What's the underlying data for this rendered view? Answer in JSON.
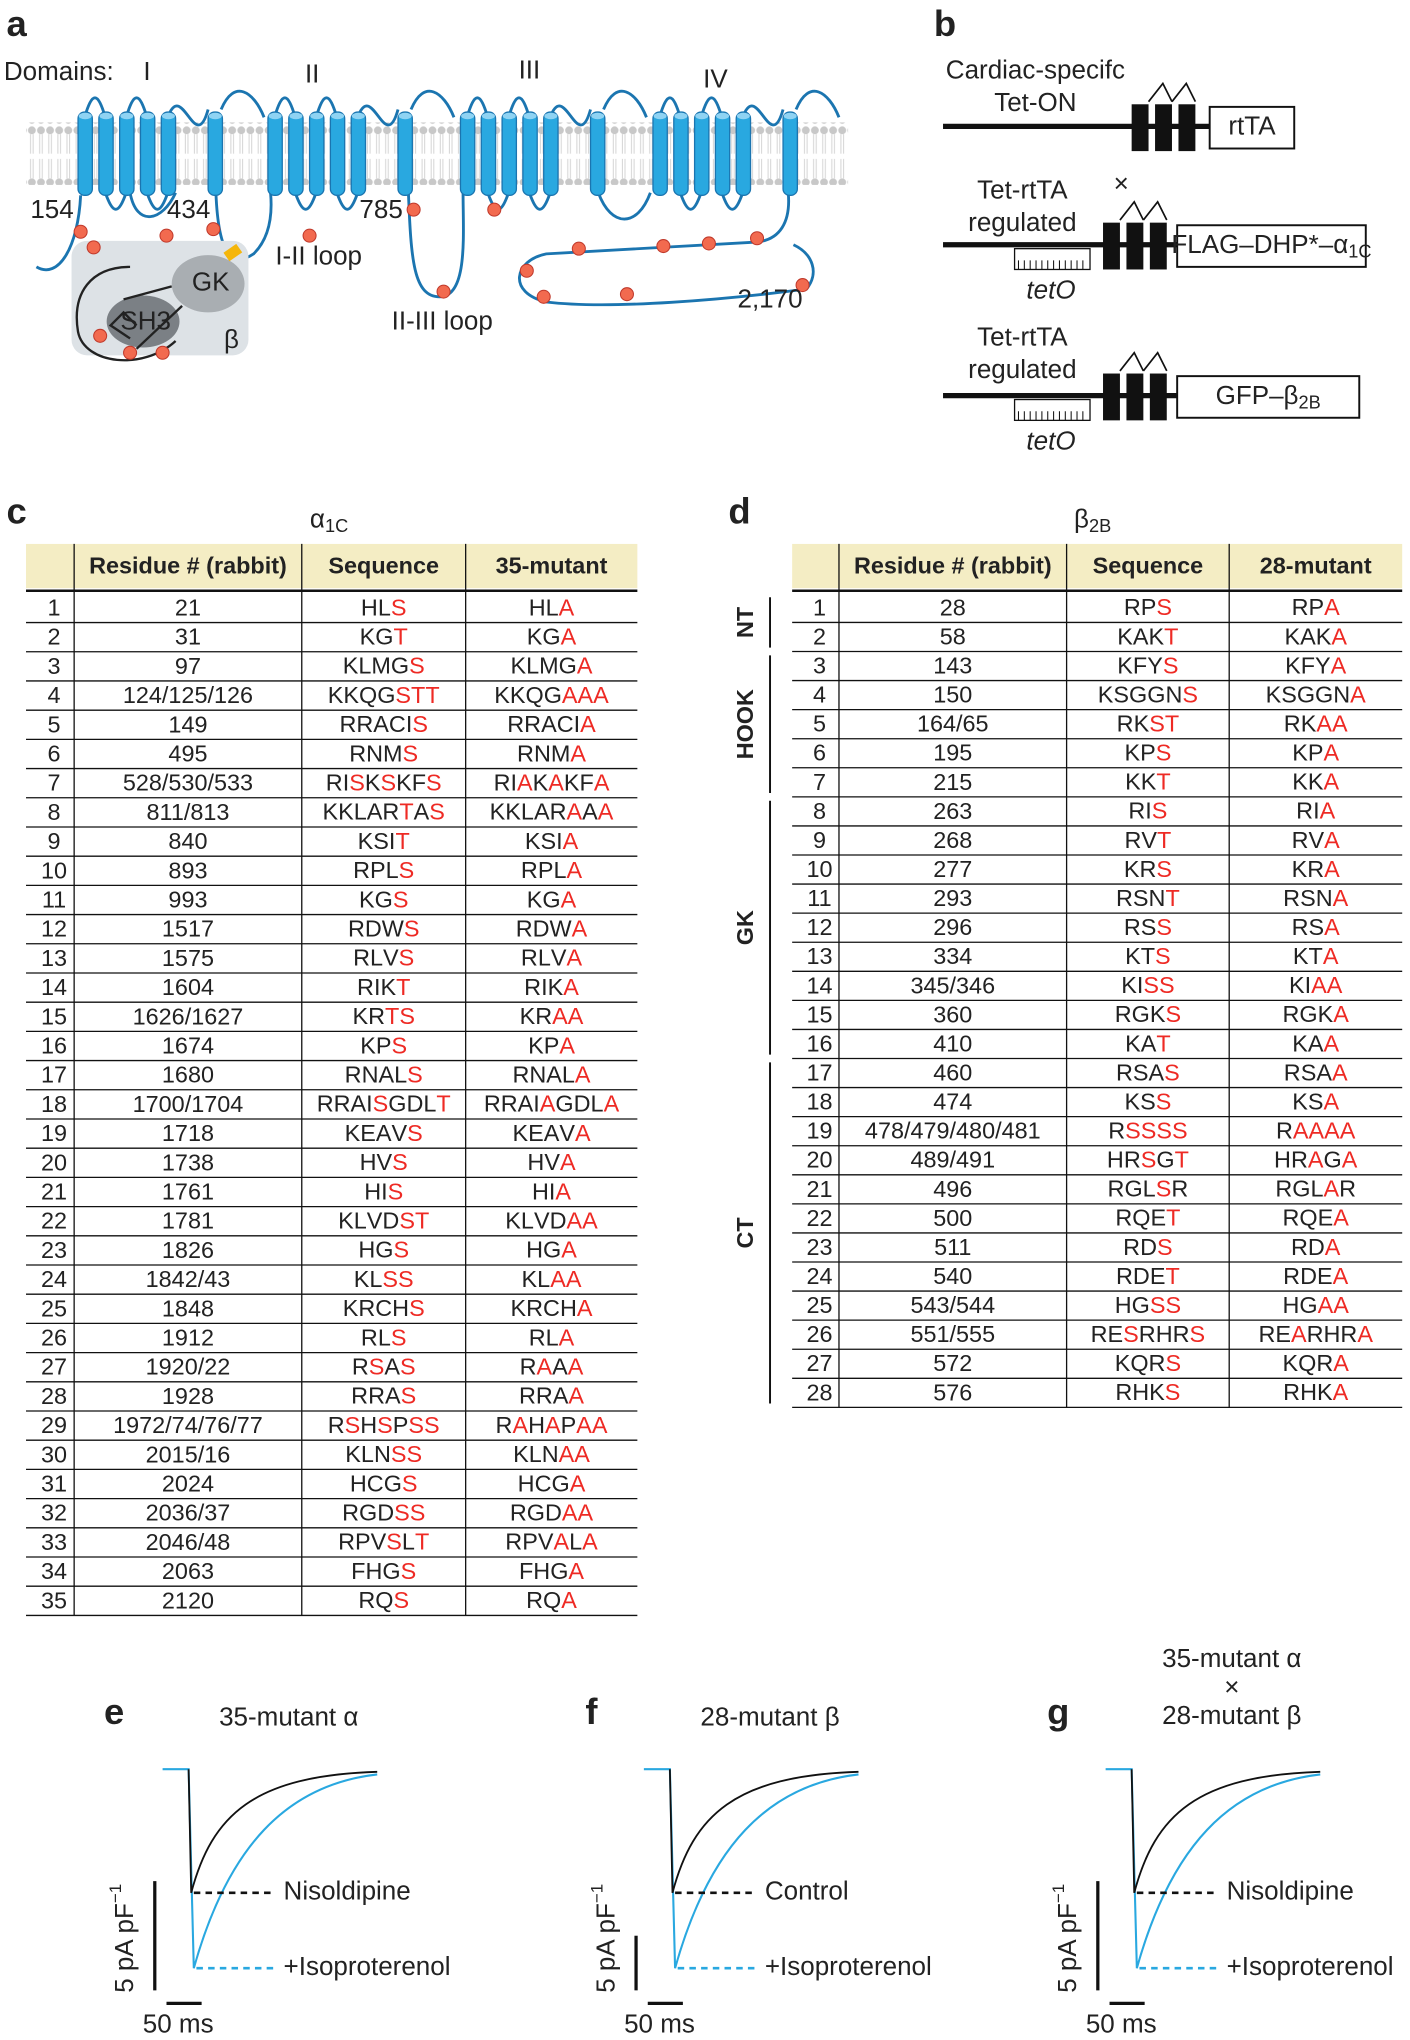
{
  "panel_a": {
    "label": "a",
    "domains_label": "Domains:",
    "domains": [
      "I",
      "II",
      "III",
      "IV"
    ],
    "residues": [
      "154",
      "434",
      "785",
      "2,170"
    ],
    "beta": {
      "gk": "GK",
      "sh3": "SH3",
      "name": "β"
    },
    "loops": [
      "I-II loop",
      "II-III loop"
    ]
  },
  "panel_b": {
    "label": "b",
    "constructs": [
      {
        "promoter": [
          "Cardiac-specifc",
          "Tet-ON"
        ],
        "gene": "rtTA"
      },
      {
        "promoter": [
          "Tet-rtTA",
          "regulated"
        ],
        "mark": "×",
        "operator": "tetO",
        "gene": "FLAG–DHP*–α",
        "gene_sub": "1C"
      },
      {
        "promoter": [
          "Tet-rtTA",
          "regulated"
        ],
        "operator": "tetO",
        "gene": "GFP–β",
        "gene_sub": "2B"
      }
    ]
  },
  "panel_c": {
    "label": "c",
    "title": "α",
    "title_sub": "1C",
    "columns": [
      "Residue # (rabbit)",
      "Sequence",
      "35-mutant"
    ],
    "rows": [
      [
        "1",
        "21",
        "HLS",
        "HLA"
      ],
      [
        "2",
        "31",
        "KGT",
        "KGA"
      ],
      [
        "3",
        "97",
        "KLMGS",
        "KLMGA"
      ],
      [
        "4",
        "124/125/126",
        "KKQGSTT",
        "KKQGAAA"
      ],
      [
        "5",
        "149",
        "RRACIS",
        "RRACIA"
      ],
      [
        "6",
        "495",
        "RNMS",
        "RNMA"
      ],
      [
        "7",
        "528/530/533",
        "RISKSKFS",
        "RIAKAKFA"
      ],
      [
        "8",
        "811/813",
        "KKLARTAS",
        "KKLARAAA"
      ],
      [
        "9",
        "840",
        "KSIT",
        "KSIA"
      ],
      [
        "10",
        "893",
        "RPLS",
        "RPLA"
      ],
      [
        "11",
        "993",
        "KGS",
        "KGA"
      ],
      [
        "12",
        "1517",
        "RDWS",
        "RDWA"
      ],
      [
        "13",
        "1575",
        "RLVS",
        "RLVA"
      ],
      [
        "14",
        "1604",
        "RIKT",
        "RIKA"
      ],
      [
        "15",
        "1626/1627",
        "KRTS",
        "KRAA"
      ],
      [
        "16",
        "1674",
        "KPS",
        "KPA"
      ],
      [
        "17",
        "1680",
        "RNALS",
        "RNALA"
      ],
      [
        "18",
        "1700/1704",
        "RRAISGDLT",
        "RRAIAGDLA"
      ],
      [
        "19",
        "1718",
        "KEAVS",
        "KEAVA"
      ],
      [
        "20",
        "1738",
        "HVS",
        "HVA"
      ],
      [
        "21",
        "1761",
        "HIS",
        "HIA"
      ],
      [
        "22",
        "1781",
        "KLVDST",
        "KLVDAA"
      ],
      [
        "23",
        "1826",
        "HGS",
        "HGA"
      ],
      [
        "24",
        "1842/43",
        "KLSS",
        "KLAA"
      ],
      [
        "25",
        "1848",
        "KRCHS",
        "KRCHA"
      ],
      [
        "26",
        "1912",
        "RLS",
        "RLA"
      ],
      [
        "27",
        "1920/22",
        "RSAS",
        "RAAA"
      ],
      [
        "28",
        "1928",
        "RRAS",
        "RRAA"
      ],
      [
        "29",
        "1972/74/76/77",
        "RSHSPSS",
        "RAHAPAA"
      ],
      [
        "30",
        "2015/16",
        "KLNSS",
        "KLNAA"
      ],
      [
        "31",
        "2024",
        "HCGS",
        "HCGA"
      ],
      [
        "32",
        "2036/37",
        "RGDSS",
        "RGDAA"
      ],
      [
        "33",
        "2046/48",
        "RPVSLT",
        "RPVALA"
      ],
      [
        "34",
        "2063",
        "FHGS",
        "FHGA"
      ],
      [
        "35",
        "2120",
        "RQS",
        "RQA"
      ]
    ]
  },
  "panel_d": {
    "label": "d",
    "title": "β",
    "title_sub": "2B",
    "columns": [
      "Residue # (rabbit)",
      "Sequence",
      "28-mutant"
    ],
    "groups": [
      {
        "name": "NT",
        "rows": [
          [
            "1",
            "28",
            "RPS",
            "RPA"
          ],
          [
            "2",
            "58",
            "KAKT",
            "KAKA"
          ]
        ]
      },
      {
        "name": "HOOK",
        "rows": [
          [
            "3",
            "143",
            "KFYS",
            "KFYA"
          ],
          [
            "4",
            "150",
            "KSGGNS",
            "KSGGNA"
          ],
          [
            "5",
            "164/65",
            "RKST",
            "RKAA"
          ],
          [
            "6",
            "195",
            "KPS",
            "KPA"
          ],
          [
            "7",
            "215",
            "KKT",
            "KKA"
          ]
        ]
      },
      {
        "name": "GK",
        "rows": [
          [
            "8",
            "263",
            "RIS",
            "RIA"
          ],
          [
            "9",
            "268",
            "RVT",
            "RVA"
          ],
          [
            "10",
            "277",
            "KRS",
            "KRA"
          ],
          [
            "11",
            "293",
            "RSNT",
            "RSNA"
          ],
          [
            "12",
            "296",
            "RSS",
            "RSA"
          ],
          [
            "13",
            "334",
            "KTS",
            "KTA"
          ],
          [
            "14",
            "345/346",
            "KISS",
            "KIAA"
          ],
          [
            "15",
            "360",
            "RGKS",
            "RGKA"
          ],
          [
            "16",
            "410",
            "KAT",
            "KAA"
          ]
        ]
      },
      {
        "name": "CT",
        "rows": [
          [
            "17",
            "460",
            "RSAS",
            "RSAA"
          ],
          [
            "18",
            "474",
            "KSS",
            "KSA"
          ],
          [
            "19",
            "478/479/480/481",
            "RSSSS",
            "RAAAA"
          ],
          [
            "20",
            "489/491",
            "HRSGT",
            "HRAGA"
          ],
          [
            "21",
            "496",
            "RGLSR",
            "RGLAR"
          ],
          [
            "22",
            "500",
            "RQET",
            "RQEA"
          ],
          [
            "23",
            "511",
            "RDS",
            "RDA"
          ],
          [
            "24",
            "540",
            "RDET",
            "RDEA"
          ],
          [
            "25",
            "543/544",
            "HGSS",
            "HGAA"
          ],
          [
            "26",
            "551/555",
            "RESRHRS",
            "REARHRA"
          ],
          [
            "27",
            "572",
            "KQRS",
            "KQRA"
          ],
          [
            "28",
            "576",
            "RHKS",
            "RHKA"
          ]
        ]
      }
    ]
  },
  "traces": [
    {
      "label": "e",
      "title": [
        "35-mutant α"
      ],
      "upper": "Nisoldipine",
      "lower": "+Isoproterenol",
      "scale_y": "5 pA pF",
      "scale_y_sup": "−1",
      "scale_x": "50 ms"
    },
    {
      "label": "f",
      "title": [
        "28-mutant β"
      ],
      "upper": "Control",
      "lower": "+Isoproterenol",
      "scale_y": "5 pA pF",
      "scale_y_sup": "−1",
      "scale_x": "50 ms"
    },
    {
      "label": "g",
      "title": [
        "35-mutant α",
        "×",
        "28-mutant β"
      ],
      "upper": "Nisoldipine",
      "lower": "+Isoproterenol",
      "scale_y": "5 pA pF",
      "scale_y_sup": "−1",
      "scale_x": "50 ms"
    }
  ]
}
